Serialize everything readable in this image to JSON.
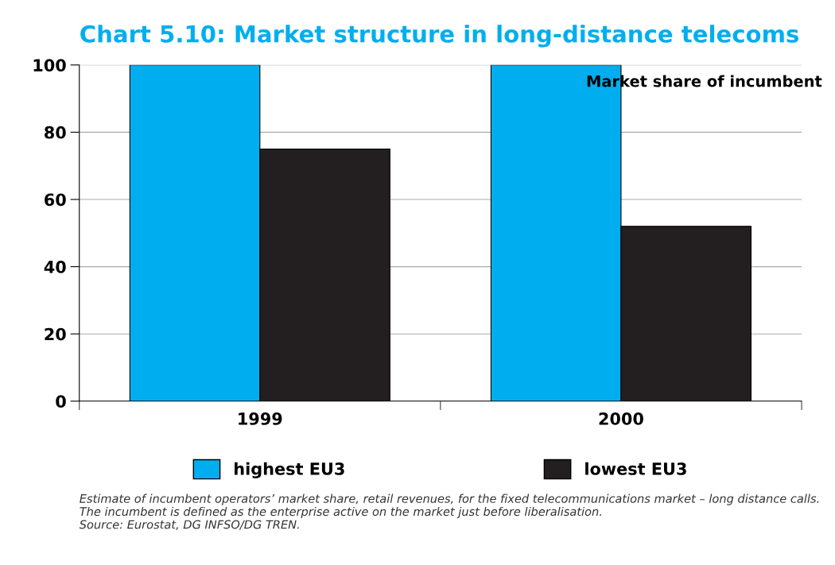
{
  "chart_data": {
    "type": "bar",
    "title": "Chart 5.10: Market structure in long-distance telecoms",
    "categories": [
      "1999",
      "2000"
    ],
    "series": [
      {
        "name": "highest EU3",
        "color": "#00aeef",
        "values": [
          100,
          100
        ]
      },
      {
        "name": "lowest EU3",
        "color": "#231f20",
        "values": [
          75,
          52
        ]
      }
    ],
    "ylim": [
      0,
      100
    ],
    "yticks": [
      0,
      20,
      40,
      60,
      80,
      100
    ],
    "grid": "y",
    "legend": "bottom",
    "annotations": [
      "Market share of incumbent",
      "Estimate of incumbent operators’ market share, retail revenues, for the fixed telecommunications market – long distance calls. The incumbent is defined as the enterprise active on the market just before liberalisation.",
      "Source: Eurostat, DG INFSO/DG TREN."
    ]
  }
}
